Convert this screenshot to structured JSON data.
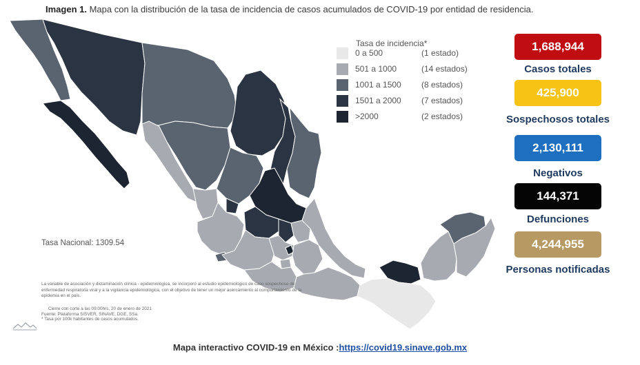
{
  "title": {
    "prefix": "Imagen 1.",
    "text": "Mapa con la distribución de la tasa de incidencia de casos acumulados de COVID-19 por entidad de residencia."
  },
  "legend": {
    "title": "Tasa de incidencia*",
    "items": [
      {
        "range": "0 a 500",
        "count": "(1 estado)",
        "color": "#e8e8e8"
      },
      {
        "range": "501 a 1000",
        "count": "(14 estados)",
        "color": "#a7abb1"
      },
      {
        "range": "1001 a 1500",
        "count": "(8 estados)",
        "color": "#5a6470"
      },
      {
        "range": "1501 a 2000",
        "count": "(7 estados)",
        "color": "#2b3442"
      },
      {
        "range": ">2000",
        "count": "(2 estados)",
        "color": "#1d2432"
      }
    ]
  },
  "tasa_nacional": "Tasa Nacional: 1309.54",
  "note": "La variable de asociación y dictaminación clínica - epidemiológica, se incorporó al estudio epidemiológico de caso sospechoso de enfermedad respiratoria viral y a la vigilancia epidemiológica, con el objetivo de tener un mejor acercamiento al comportamiento de la epidemia en el país.",
  "footer": {
    "line1": "Cierre con corte a las 09:00hrs, 20 de enero de 2021",
    "line2": "Fuente: Plataforma SISVER, SINAVE, DGE, SSa.",
    "line3": "* Tasa por 100k habitantes de casos acumulados."
  },
  "stats": [
    {
      "value": "1,688,944",
      "label": "Casos totales",
      "color": "#c00d12"
    },
    {
      "value": "425,900",
      "label": "Sospechosos totales",
      "color": "#f7c314"
    },
    {
      "value": "2,130,111",
      "label": "Negativos",
      "color": "#1f6fc0"
    },
    {
      "value": "144,371",
      "label": "Defunciones",
      "color": "#050505"
    },
    {
      "value": "4,244,955",
      "label": "Personas notificadas",
      "color": "#b79a63"
    }
  ],
  "bottom": {
    "text": "Mapa interactivo COVID-19 en México :",
    "link": "https://covid19.sinave.gob.mx"
  }
}
